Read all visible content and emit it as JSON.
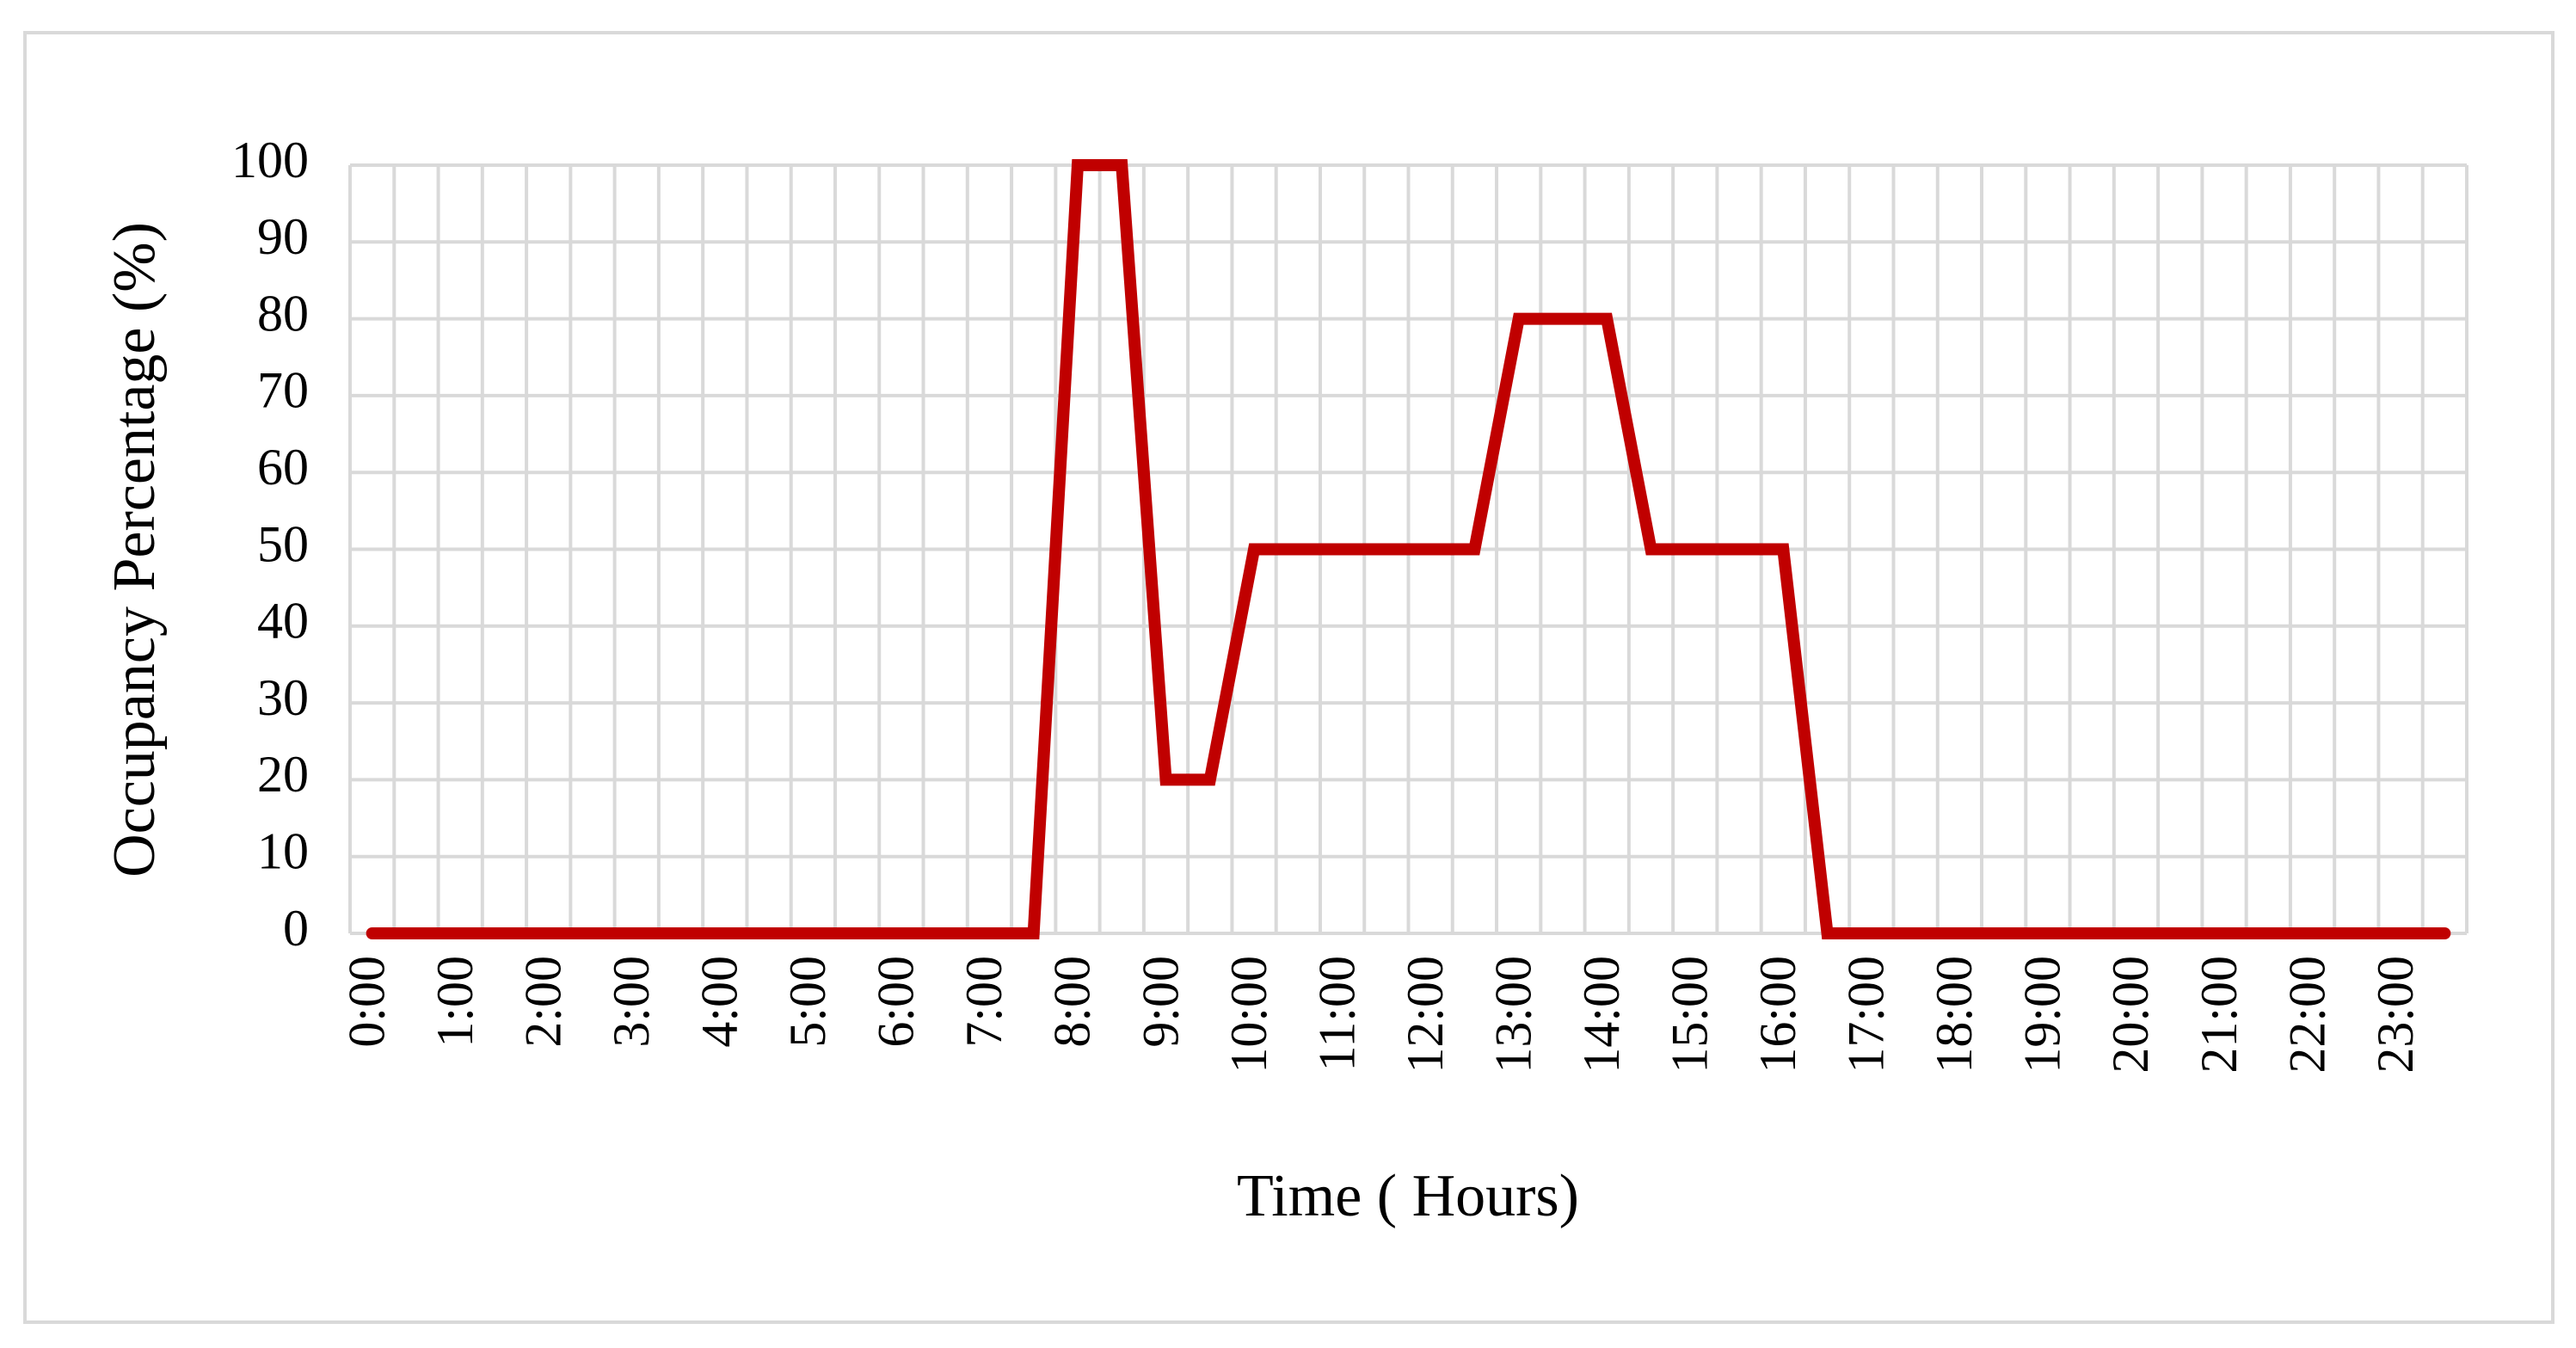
{
  "chart_data": {
    "type": "line",
    "x_label": "Time ( Hours)",
    "y_label": "Occupancy Percentage (%)",
    "categories": [
      "0:00",
      null,
      "1:00",
      null,
      "2:00",
      null,
      "3:00",
      null,
      "4:00",
      null,
      "5:00",
      null,
      "6:00",
      null,
      "7:00",
      null,
      "8:00",
      null,
      "9:00",
      null,
      "10:00",
      null,
      "11:00",
      null,
      "12:00",
      null,
      "13:00",
      null,
      "14:00",
      null,
      "15:00",
      null,
      "16:00",
      null,
      "17:00",
      null,
      "18:00",
      null,
      "19:00",
      null,
      "20:00",
      null,
      "21:00",
      null,
      "22:00",
      null,
      "23:00",
      null
    ],
    "values": [
      0,
      0,
      0,
      0,
      0,
      0,
      0,
      0,
      0,
      0,
      0,
      0,
      0,
      0,
      0,
      0,
      100,
      100,
      20,
      20,
      50,
      50,
      50,
      50,
      50,
      50,
      80,
      80,
      80,
      50,
      50,
      50,
      50,
      0,
      0,
      0,
      0,
      0,
      0,
      0,
      0,
      0,
      0,
      0,
      0,
      0,
      0,
      0
    ],
    "color": "#c00000",
    "ylim": [
      0,
      100
    ],
    "yticks": [
      0,
      10,
      20,
      30,
      40,
      50,
      60,
      70,
      80,
      90,
      100
    ],
    "grid": true
  }
}
